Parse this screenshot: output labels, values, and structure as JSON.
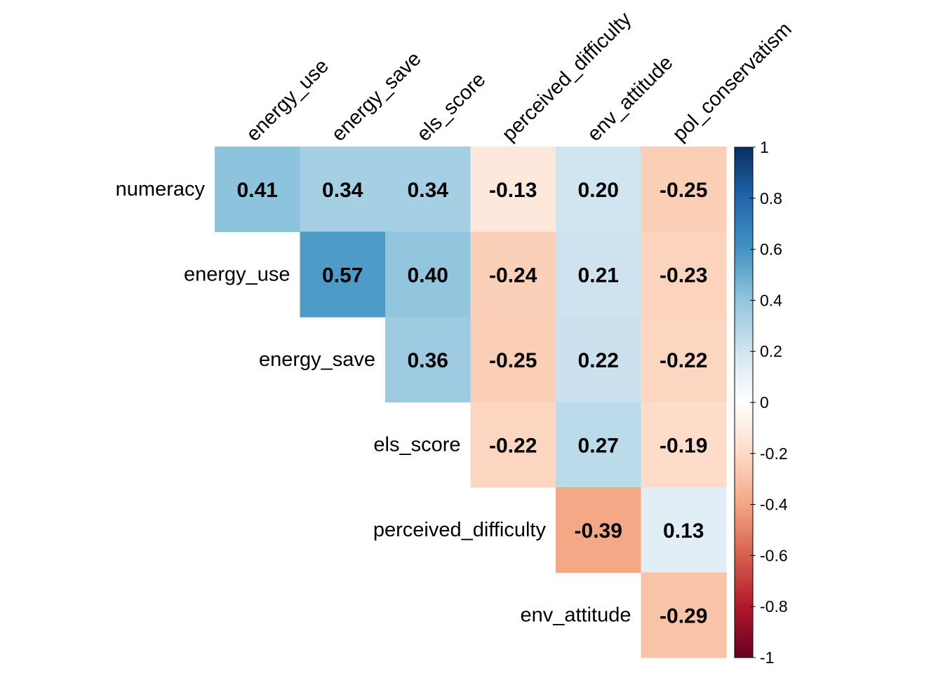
{
  "chart_data": {
    "type": "heatmap",
    "layout": "upper-triangle correlation matrix",
    "row_labels": [
      "numeracy",
      "energy_use",
      "energy_save",
      "els_score",
      "perceived_difficulty",
      "env_attitude"
    ],
    "column_labels": [
      "energy_use",
      "energy_save",
      "els_score",
      "perceived_difficulty",
      "env_attitude",
      "pol_conservatism"
    ],
    "values": [
      [
        0.41,
        0.34,
        0.34,
        -0.13,
        0.2,
        -0.25
      ],
      [
        null,
        0.57,
        0.4,
        -0.24,
        0.21,
        -0.23
      ],
      [
        null,
        null,
        0.36,
        -0.25,
        0.22,
        -0.22
      ],
      [
        null,
        null,
        null,
        -0.22,
        0.27,
        -0.19
      ],
      [
        null,
        null,
        null,
        null,
        -0.39,
        0.13
      ],
      [
        null,
        null,
        null,
        null,
        null,
        -0.29
      ]
    ],
    "value_labels": [
      [
        "0.41",
        "0.34",
        "0.34",
        "-0.13",
        "0.20",
        "-0.25"
      ],
      [
        null,
        "0.57",
        "0.40",
        "-0.24",
        "0.21",
        "-0.23"
      ],
      [
        null,
        null,
        "0.36",
        "-0.25",
        "0.22",
        "-0.22"
      ],
      [
        null,
        null,
        null,
        "-0.22",
        "0.27",
        "-0.19"
      ],
      [
        null,
        null,
        null,
        null,
        "-0.39",
        "0.13"
      ],
      [
        null,
        null,
        null,
        null,
        null,
        "-0.29"
      ]
    ],
    "colorbar": {
      "range": [
        -1,
        1
      ],
      "ticks": [
        1,
        0.8,
        0.6,
        0.4,
        0.2,
        0,
        -0.2,
        -0.4,
        -0.6,
        -0.8,
        -1
      ],
      "tick_labels": [
        "1",
        "0.8",
        "0.6",
        "0.4",
        "0.2",
        "0",
        "-0.2",
        "-0.4",
        "-0.6",
        "-0.8",
        "-1"
      ],
      "placement": "right",
      "palette": [
        "#67001F",
        "#B2182B",
        "#D6604D",
        "#F4A582",
        "#FDDBC7",
        "#FFFFFF",
        "#D1E5F0",
        "#92C5DE",
        "#4393C3",
        "#2166AC",
        "#053061"
      ]
    },
    "grid": false
  }
}
